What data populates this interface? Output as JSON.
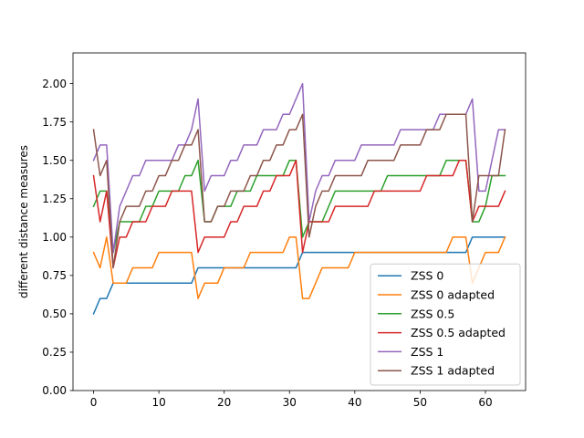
{
  "chart_data": {
    "type": "line",
    "title": "",
    "xlabel": "",
    "ylabel": "different distance measures",
    "xlim": [
      -3.15,
      66.15
    ],
    "ylim": [
      0.0,
      2.2
    ],
    "xticks": [
      0,
      10,
      20,
      30,
      40,
      50,
      60
    ],
    "yticks": [
      0.0,
      0.25,
      0.5,
      0.75,
      1.0,
      1.25,
      1.5,
      1.75,
      2.0
    ],
    "ytick_labels": [
      "0.00",
      "0.25",
      "0.50",
      "0.75",
      "1.00",
      "1.25",
      "1.50",
      "1.75",
      "2.00"
    ],
    "grid": false,
    "legend_position": "lower-right",
    "series": [
      {
        "name": "ZSS 0",
        "color": "#1f77b4",
        "values": [
          0.5,
          0.6,
          0.6,
          0.7,
          0.7,
          0.7,
          0.7,
          0.7,
          0.7,
          0.7,
          0.7,
          0.7,
          0.7,
          0.7,
          0.7,
          0.7,
          0.8,
          0.8,
          0.8,
          0.8,
          0.8,
          0.8,
          0.8,
          0.8,
          0.8,
          0.8,
          0.8,
          0.8,
          0.8,
          0.8,
          0.8,
          0.8,
          0.9,
          0.9,
          0.9,
          0.9,
          0.9,
          0.9,
          0.9,
          0.9,
          0.9,
          0.9,
          0.9,
          0.9,
          0.9,
          0.9,
          0.9,
          0.9,
          0.9,
          0.9,
          0.9,
          0.9,
          0.9,
          0.9,
          0.9,
          0.9,
          0.9,
          0.9,
          1.0,
          1.0,
          1.0,
          1.0,
          1.0,
          1.0
        ]
      },
      {
        "name": "ZSS 0 adapted",
        "color": "#ff7f0e",
        "values": [
          0.9,
          0.8,
          1.0,
          0.7,
          0.7,
          0.7,
          0.8,
          0.8,
          0.8,
          0.8,
          0.9,
          0.9,
          0.9,
          0.9,
          0.9,
          0.9,
          0.6,
          0.7,
          0.7,
          0.7,
          0.8,
          0.8,
          0.8,
          0.8,
          0.9,
          0.9,
          0.9,
          0.9,
          0.9,
          0.9,
          1.0,
          1.0,
          0.6,
          0.6,
          0.7,
          0.8,
          0.8,
          0.8,
          0.8,
          0.8,
          0.9,
          0.9,
          0.9,
          0.9,
          0.9,
          0.9,
          0.9,
          0.9,
          0.9,
          0.9,
          0.9,
          0.9,
          0.9,
          0.9,
          0.9,
          1.0,
          1.0,
          1.0,
          0.7,
          0.8,
          0.9,
          0.9,
          0.9,
          1.0
        ]
      },
      {
        "name": "ZSS 0.5",
        "color": "#2ca02c",
        "values": [
          1.2,
          1.3,
          1.3,
          0.9,
          1.1,
          1.1,
          1.1,
          1.1,
          1.2,
          1.2,
          1.3,
          1.3,
          1.3,
          1.3,
          1.4,
          1.4,
          1.5,
          1.1,
          1.1,
          1.2,
          1.2,
          1.2,
          1.3,
          1.3,
          1.3,
          1.4,
          1.4,
          1.4,
          1.4,
          1.4,
          1.5,
          1.5,
          1.0,
          1.1,
          1.1,
          1.1,
          1.2,
          1.3,
          1.3,
          1.3,
          1.3,
          1.3,
          1.3,
          1.3,
          1.3,
          1.4,
          1.4,
          1.4,
          1.4,
          1.4,
          1.4,
          1.4,
          1.4,
          1.4,
          1.5,
          1.5,
          1.5,
          1.5,
          1.1,
          1.1,
          1.2,
          1.4,
          1.4,
          1.4
        ]
      },
      {
        "name": "ZSS 0.5 adapted",
        "color": "#d62728",
        "values": [
          1.4,
          1.1,
          1.3,
          0.8,
          1.0,
          1.0,
          1.1,
          1.1,
          1.1,
          1.2,
          1.2,
          1.2,
          1.3,
          1.3,
          1.3,
          1.3,
          0.9,
          1.0,
          1.0,
          1.0,
          1.0,
          1.1,
          1.1,
          1.2,
          1.2,
          1.2,
          1.3,
          1.3,
          1.4,
          1.4,
          1.4,
          1.5,
          0.9,
          1.1,
          1.1,
          1.1,
          1.1,
          1.2,
          1.2,
          1.2,
          1.2,
          1.2,
          1.2,
          1.3,
          1.3,
          1.3,
          1.3,
          1.3,
          1.3,
          1.3,
          1.3,
          1.4,
          1.4,
          1.4,
          1.4,
          1.4,
          1.5,
          1.5,
          1.1,
          1.2,
          1.2,
          1.2,
          1.2,
          1.3
        ]
      },
      {
        "name": "ZSS 1",
        "color": "#9467bd",
        "values": [
          1.5,
          1.6,
          1.6,
          0.9,
          1.2,
          1.3,
          1.4,
          1.4,
          1.5,
          1.5,
          1.5,
          1.5,
          1.5,
          1.6,
          1.6,
          1.7,
          1.9,
          1.3,
          1.4,
          1.4,
          1.4,
          1.5,
          1.5,
          1.6,
          1.6,
          1.6,
          1.7,
          1.7,
          1.7,
          1.8,
          1.8,
          1.9,
          2.0,
          1.1,
          1.3,
          1.4,
          1.4,
          1.5,
          1.5,
          1.5,
          1.5,
          1.6,
          1.6,
          1.6,
          1.6,
          1.6,
          1.6,
          1.7,
          1.7,
          1.7,
          1.7,
          1.7,
          1.7,
          1.8,
          1.8,
          1.8,
          1.8,
          1.8,
          1.9,
          1.3,
          1.3,
          1.5,
          1.7,
          1.7
        ]
      },
      {
        "name": "ZSS 1 adapted",
        "color": "#8c564b",
        "values": [
          1.7,
          1.4,
          1.5,
          0.8,
          1.1,
          1.2,
          1.2,
          1.2,
          1.3,
          1.3,
          1.4,
          1.4,
          1.5,
          1.5,
          1.6,
          1.6,
          1.7,
          1.1,
          1.1,
          1.2,
          1.2,
          1.3,
          1.3,
          1.3,
          1.4,
          1.4,
          1.5,
          1.5,
          1.6,
          1.6,
          1.7,
          1.7,
          1.8,
          1.0,
          1.2,
          1.3,
          1.3,
          1.4,
          1.4,
          1.4,
          1.4,
          1.4,
          1.5,
          1.5,
          1.5,
          1.5,
          1.5,
          1.6,
          1.6,
          1.6,
          1.6,
          1.7,
          1.7,
          1.7,
          1.8,
          1.8,
          1.8,
          1.8,
          1.1,
          1.4,
          1.4,
          1.4,
          1.4,
          1.7
        ]
      }
    ]
  }
}
